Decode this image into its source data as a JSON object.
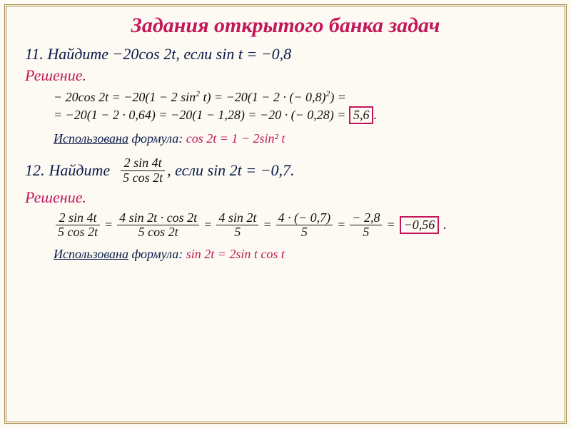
{
  "title": "Задания открытого банка задач",
  "p11": {
    "number": "11.",
    "text": "Найдите −20cos 2t, если sin t = −0,8"
  },
  "solution_label": "Решение.",
  "p11_line1_a": "− 20cos 2t = −20(1 − 2 sin",
  "p11_line1_b": " t) = −20(1 − 2 · (− 0,8)",
  "p11_line1_c": ") =",
  "p11_line2_a": "= −20(1 − 2 · 0,64) = −20(1 − 1,28) = −20 · (− 0,28) = ",
  "p11_answer": "5,6",
  "formula_used_label": "Использована",
  "formula_text": " формула:  ",
  "p11_formula": "cos 2t = 1 − 2sin² t",
  "p12": {
    "number": "12.",
    "find": "Найдите",
    "tail": ", если sin 2t = −0,7.",
    "frac_num": "2 sin 4t",
    "frac_den": "5 cos 2t"
  },
  "p12_chain": {
    "f1n": "2 sin 4t",
    "f1d": "5 cos 2t",
    "f2n": "4 sin 2t · cos 2t",
    "f2d": "5 cos 2t",
    "f3n": "4 sin 2t",
    "f3d": "5",
    "f4n": "4 · (− 0,7)",
    "f4d": "5",
    "f5n": "− 2,8",
    "f5d": "5",
    "answer": "−0,56"
  },
  "p12_formula": "sin 2t = 2sin t cos t",
  "period": "."
}
